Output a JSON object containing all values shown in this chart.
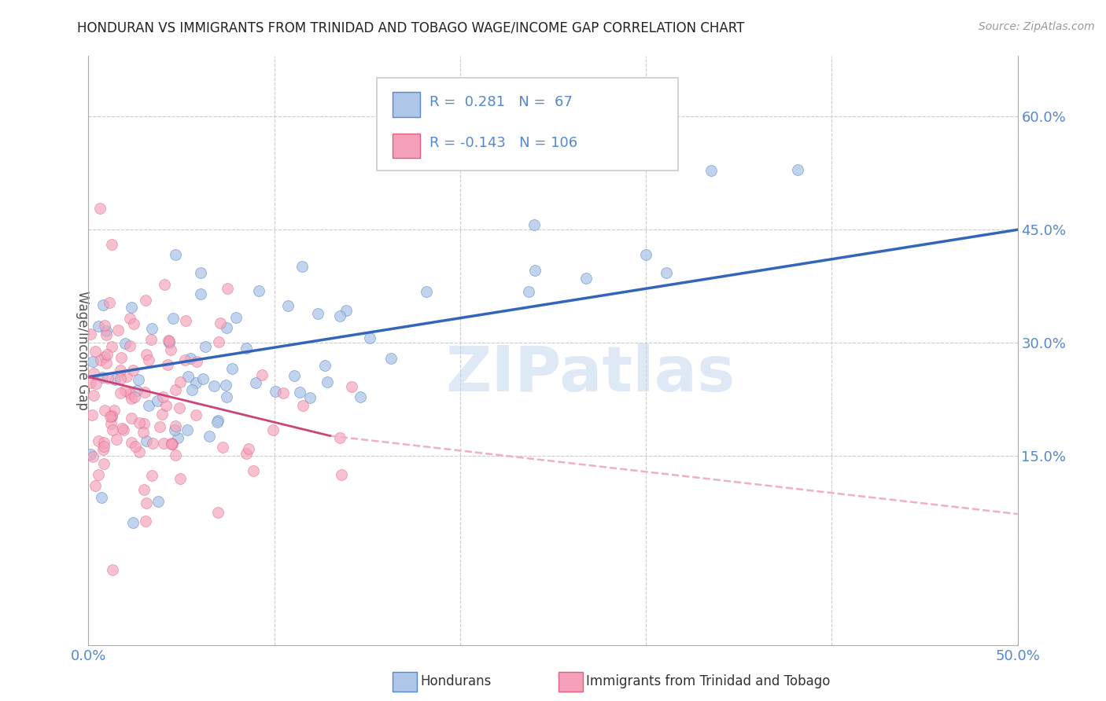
{
  "title": "HONDURAN VS IMMIGRANTS FROM TRINIDAD AND TOBAGO WAGE/INCOME GAP CORRELATION CHART",
  "source": "Source: ZipAtlas.com",
  "ylabel": "Wage/Income Gap",
  "xlim": [
    0.0,
    0.5
  ],
  "ylim": [
    -0.1,
    0.68
  ],
  "xticks": [
    0.0,
    0.1,
    0.2,
    0.3,
    0.4,
    0.5
  ],
  "yticks": [
    0.15,
    0.3,
    0.45,
    0.6
  ],
  "xticklabels": [
    "0.0%",
    "",
    "",
    "",
    "",
    "50.0%"
  ],
  "yticklabels": [
    "15.0%",
    "30.0%",
    "45.0%",
    "60.0%"
  ],
  "blue_R": 0.281,
  "blue_N": 67,
  "pink_R": -0.143,
  "pink_N": 106,
  "blue_color": "#aec6e8",
  "pink_color": "#f4a0b8",
  "blue_edge_color": "#5588cc",
  "pink_edge_color": "#e06080",
  "blue_line_color": "#3366bb",
  "pink_line_color": "#cc4477",
  "pink_dash_color": "#f0b0c0",
  "legend_label_blue": "Hondurans",
  "legend_label_pink": "Immigrants from Trinidad and Tobago",
  "watermark": "ZIPatlas",
  "watermark_color": "#c5d8ee",
  "background_color": "#ffffff",
  "grid_color": "#cccccc",
  "title_color": "#222222",
  "axis_label_color": "#555555",
  "tick_label_color": "#5588cc",
  "blue_intercept": 0.255,
  "blue_slope": 0.39,
  "pink_intercept": 0.255,
  "pink_slope": -0.6,
  "pink_dash_slope": -0.28
}
